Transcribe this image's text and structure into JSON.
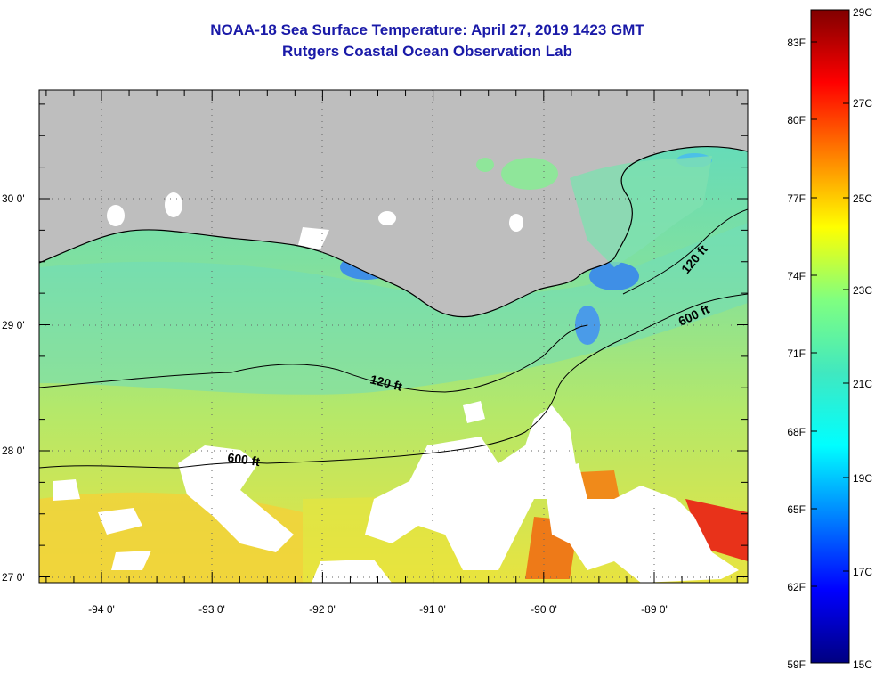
{
  "title": {
    "line1": "NOAA-18 Sea Surface Temperature:  April 27, 2019 1423 GMT",
    "line2": "Rutgers Coastal Ocean Observation Lab"
  },
  "map": {
    "longitude_labels": [
      "-94 0'",
      "-93 0'",
      "-92 0'",
      "-91 0'",
      "-90 0'",
      "-89 0'"
    ],
    "latitude_labels": [
      "30 0'",
      "29 0'",
      "28 0'",
      "27 0'"
    ],
    "contours": [
      {
        "label": "120 ft"
      },
      {
        "label": "600 ft"
      },
      {
        "label": "120 ft"
      },
      {
        "label": "600 ft"
      }
    ],
    "colors": {
      "land": "#bebebe",
      "water_cool": "#4cd9c9",
      "water_mid": "#8fe07a",
      "water_warm": "#e6e83a",
      "cloud": "#ffffff"
    }
  },
  "colorbar": {
    "fahrenheit_labels": [
      "83F",
      "80F",
      "77F",
      "74F",
      "71F",
      "68F",
      "65F",
      "62F",
      "59F"
    ],
    "celsius_labels": [
      "29C",
      "27C",
      "25C",
      "23C",
      "21C",
      "19C",
      "17C",
      "15C"
    ],
    "gradient": [
      "#000080",
      "#0000ff",
      "#0080ff",
      "#00ffff",
      "#40e8c0",
      "#80ff80",
      "#ffff00",
      "#ff8000",
      "#ff0000",
      "#800000"
    ]
  }
}
